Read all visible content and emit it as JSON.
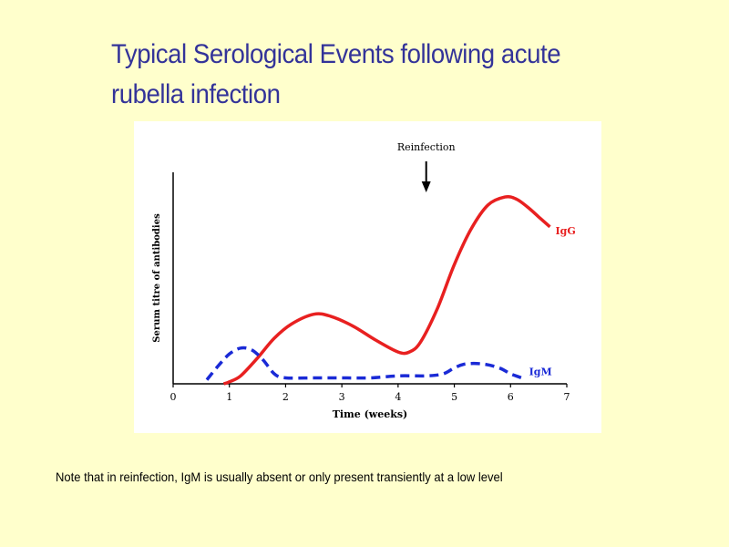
{
  "slide": {
    "title_line1": "Typical Serological Events following acute",
    "title_line2": "rubella infection",
    "footnote": "Note that in reinfection, IgM is usually absent or only present transiently at a low level"
  },
  "colors": {
    "background": "#ffffcc",
    "title": "#333399",
    "igg": "#e82020",
    "igm": "#1a2ad6"
  },
  "chart_data": {
    "type": "line",
    "xlabel": "Time (weeks)",
    "ylabel": "Serum titre of antibodies",
    "xlim": [
      0,
      7
    ],
    "ylim": [
      0,
      10
    ],
    "x_ticks": [
      "0",
      "1",
      "2",
      "3",
      "4",
      "5",
      "6",
      "7"
    ],
    "annotation": {
      "label": "Reinfection",
      "x": 4.5,
      "arrow": "down"
    },
    "series": [
      {
        "name": "IgG",
        "style": "solid",
        "color": "#e82020",
        "x": [
          0.9,
          1.0,
          1.2,
          1.5,
          1.8,
          2.1,
          2.5,
          2.8,
          3.2,
          3.6,
          4.0,
          4.2,
          4.4,
          4.7,
          5.0,
          5.3,
          5.6,
          5.9,
          6.1,
          6.3,
          6.5,
          6.7
        ],
        "y": [
          0.0,
          0.1,
          0.4,
          1.3,
          2.3,
          3.0,
          3.5,
          3.4,
          2.9,
          2.2,
          1.6,
          1.6,
          2.1,
          3.8,
          6.0,
          7.8,
          9.0,
          9.4,
          9.3,
          8.9,
          8.4,
          7.9
        ]
      },
      {
        "name": "IgM",
        "style": "dashed",
        "color": "#1a2ad6",
        "x": [
          0.6,
          0.8,
          1.0,
          1.2,
          1.4,
          1.6,
          1.8,
          2.0,
          2.5,
          3.0,
          3.5,
          4.0,
          4.5,
          4.8,
          5.0,
          5.2,
          5.5,
          5.8,
          6.0,
          6.2
        ],
        "y": [
          0.2,
          0.9,
          1.5,
          1.8,
          1.7,
          1.2,
          0.5,
          0.3,
          0.3,
          0.3,
          0.3,
          0.4,
          0.4,
          0.5,
          0.8,
          1.0,
          1.0,
          0.8,
          0.5,
          0.3
        ]
      }
    ]
  }
}
